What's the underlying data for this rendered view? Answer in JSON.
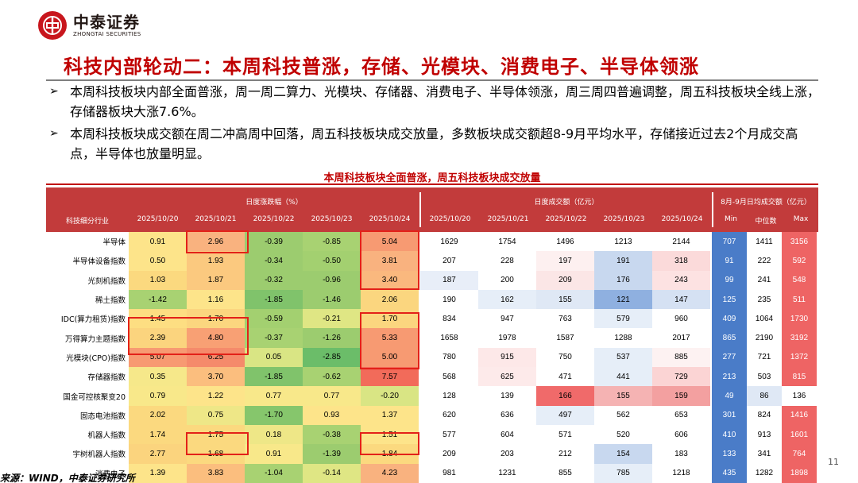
{
  "logo": {
    "cn": "中泰证券",
    "en": "ZHONGTAI SECURITIES"
  },
  "title": "科技内部轮动二：本周科技普涨，存储、光模块、消费电子、半导体领涨",
  "bullets": [
    "本周科技板块内部全面普涨，周一周二算力、光模块、存储器、消费电子、半导体领涨，周三周四普遍调整，周五科技板块全线上涨，存储器板块大涨7.6%。",
    "本周科技板块成交额在周二冲高周中回落，周五科技板块成交放量，多数板块成交额超8-9月平均水平，存储接近过去2个月成交高点，半导体也放量明显。"
  ],
  "table": {
    "title": "本周科技板块全面普涨，周五科技板块成交放量",
    "group_headers": [
      "日度涨跌幅（%）",
      "日度成交额（亿元）",
      "8月-9月日均成交额（亿元）"
    ],
    "name_header": "科技细分行业",
    "dates": [
      "2025/10/20",
      "2025/10/21",
      "2025/10/22",
      "2025/10/23",
      "2025/10/24"
    ],
    "stat_headers": [
      "Min",
      "中位数",
      "Max"
    ],
    "rows": [
      {
        "name": "半导体",
        "chg": [
          "0.91",
          "2.96",
          "-0.39",
          "-0.85",
          "5.04"
        ],
        "amt": [
          "1629",
          "1754",
          "1496",
          "1213",
          "2144"
        ],
        "stats": [
          "707",
          "1411",
          "3156"
        ]
      },
      {
        "name": "半导体设备指数",
        "chg": [
          "0.50",
          "1.93",
          "-0.34",
          "-0.50",
          "3.81"
        ],
        "amt": [
          "207",
          "228",
          "197",
          "191",
          "318"
        ],
        "stats": [
          "91",
          "222",
          "592"
        ]
      },
      {
        "name": "光刻机指数",
        "chg": [
          "1.03",
          "1.87",
          "-0.32",
          "-0.96",
          "3.40"
        ],
        "amt": [
          "187",
          "200",
          "209",
          "176",
          "243"
        ],
        "stats": [
          "99",
          "241",
          "548"
        ]
      },
      {
        "name": "稀土指数",
        "chg": [
          "-1.42",
          "1.16",
          "-1.85",
          "-1.46",
          "2.06"
        ],
        "amt": [
          "190",
          "162",
          "155",
          "121",
          "147"
        ],
        "stats": [
          "125",
          "235",
          "511"
        ]
      },
      {
        "name": "IDC(算力租赁)指数",
        "chg": [
          "1.45",
          "1.70",
          "-0.59",
          "-0.21",
          "1.70"
        ],
        "amt": [
          "834",
          "947",
          "763",
          "579",
          "960"
        ],
        "stats": [
          "409",
          "1064",
          "1730"
        ]
      },
      {
        "name": "万得算力主题指数",
        "chg": [
          "2.39",
          "4.80",
          "-0.37",
          "-1.26",
          "5.33"
        ],
        "amt": [
          "1658",
          "1978",
          "1587",
          "1288",
          "2017"
        ],
        "stats": [
          "865",
          "2190",
          "3192"
        ]
      },
      {
        "name": "光模块(CPO)指数",
        "chg": [
          "5.07",
          "6.25",
          "0.05",
          "-2.85",
          "5.00"
        ],
        "amt": [
          "780",
          "915",
          "750",
          "537",
          "885"
        ],
        "stats": [
          "277",
          "721",
          "1372"
        ]
      },
      {
        "name": "存储器指数",
        "chg": [
          "0.35",
          "3.70",
          "-1.85",
          "-0.62",
          "7.57"
        ],
        "amt": [
          "568",
          "625",
          "471",
          "441",
          "729"
        ],
        "stats": [
          "213",
          "503",
          "815"
        ]
      },
      {
        "name": "国金可控核聚变20",
        "chg": [
          "0.79",
          "1.22",
          "0.77",
          "0.77",
          "-0.20"
        ],
        "amt": [
          "128",
          "139",
          "166",
          "155",
          "159"
        ],
        "stats": [
          "49",
          "86",
          "136"
        ]
      },
      {
        "name": "固态电池指数",
        "chg": [
          "2.02",
          "0.75",
          "-1.70",
          "0.93",
          "1.37"
        ],
        "amt": [
          "620",
          "636",
          "497",
          "562",
          "653"
        ],
        "stats": [
          "301",
          "824",
          "1416"
        ]
      },
      {
        "name": "机器人指数",
        "chg": [
          "1.74",
          "1.75",
          "0.18",
          "-0.38",
          "1.51"
        ],
        "amt": [
          "577",
          "604",
          "571",
          "520",
          "606"
        ],
        "stats": [
          "410",
          "913",
          "1601"
        ]
      },
      {
        "name": "宇树机器人指数",
        "chg": [
          "2.77",
          "1.68",
          "0.91",
          "-1.39",
          "1.84"
        ],
        "amt": [
          "209",
          "203",
          "212",
          "154",
          "183"
        ],
        "stats": [
          "133",
          "341",
          "764"
        ]
      },
      {
        "name": "消费电子",
        "chg": [
          "1.39",
          "3.83",
          "-1.04",
          "-0.14",
          "4.23"
        ],
        "amt": [
          "981",
          "1231",
          "855",
          "785",
          "1218"
        ],
        "stats": [
          "435",
          "1282",
          "1898"
        ]
      }
    ],
    "chg_colors": [
      [
        "#fde48a",
        "#f9b27f",
        "#9ccc6f",
        "#a8d272",
        "#f79a72"
      ],
      [
        "#fde48a",
        "#fbc97f",
        "#9ccc6f",
        "#a3d070",
        "#f9b27f"
      ],
      [
        "#fbd97f",
        "#fbc97f",
        "#9ccc6f",
        "#9ccc6f",
        "#fab87e"
      ],
      [
        "#a8d272",
        "#fde48a",
        "#80c36b",
        "#9ccc6f",
        "#fbd67f"
      ],
      [
        "#fdde82",
        "#fbd67f",
        "#a3d070",
        "#dfe684",
        "#fbd67f"
      ],
      [
        "#fbd47e",
        "#f8a074",
        "#a8d272",
        "#9ccc6f",
        "#f79a72"
      ],
      [
        "#f79a72",
        "#f58a6b",
        "#d9e584",
        "#6bbd69",
        "#f79a72"
      ],
      [
        "#f6e88a",
        "#fbbe7e",
        "#80c36b",
        "#a8d272",
        "#f26b5a"
      ],
      [
        "#f8e88a",
        "#fde48a",
        "#f8e88a",
        "#f8e88a",
        "#d9e584"
      ],
      [
        "#fbd97f",
        "#eee787",
        "#86c66c",
        "#fde48a",
        "#fde48a"
      ],
      [
        "#fbd97f",
        "#fbd97f",
        "#eee787",
        "#a8d272",
        "#fde48a"
      ],
      [
        "#fbd47e",
        "#fbd97f",
        "#f8e88a",
        "#9ccc6f",
        "#fbd97f"
      ],
      [
        "#fde48a",
        "#fbbe7e",
        "#a8d272",
        "#dfe684",
        "#f9b27f"
      ]
    ],
    "amt_colors": [
      [
        "#ffffff",
        "#ffffff",
        "#ffffff",
        "#ffffff",
        "#ffffff"
      ],
      [
        "#ffffff",
        "#ffffff",
        "#fdf0f0",
        "#c8d8ef",
        "#fbdada"
      ],
      [
        "#e8eef8",
        "#ffffff",
        "#fbe6e6",
        "#c8d8ef",
        "#fde2e2"
      ],
      [
        "#ffffff",
        "#e6eef8",
        "#dfe8f5",
        "#8fb0e0",
        "#d5e1f3"
      ],
      [
        "#ffffff",
        "#ffffff",
        "#ffffff",
        "#e6eef8",
        "#ffffff"
      ],
      [
        "#ffffff",
        "#ffffff",
        "#ffffff",
        "#ffffff",
        "#ffffff"
      ],
      [
        "#ffffff",
        "#fde8e8",
        "#ffffff",
        "#e6eef8",
        "#fdf2f2"
      ],
      [
        "#ffffff",
        "#fdeaea",
        "#ffffff",
        "#e6eef8",
        "#fbd4d4"
      ],
      [
        "#ffffff",
        "#ffffff",
        "#f06a6a",
        "#f5b3b3",
        "#f3a0a0"
      ],
      [
        "#ffffff",
        "#ffffff",
        "#e6eef8",
        "#ffffff",
        "#ffffff"
      ],
      [
        "#ffffff",
        "#ffffff",
        "#ffffff",
        "#ffffff",
        "#ffffff"
      ],
      [
        "#ffffff",
        "#ffffff",
        "#ffffff",
        "#c8d8ef",
        "#ffffff"
      ],
      [
        "#ffffff",
        "#ffffff",
        "#ffffff",
        "#e6eef8",
        "#ffffff"
      ]
    ],
    "stat_colors": [
      "#4a7cc8",
      "#ffffff",
      "#ee6464"
    ],
    "stat_colors_last": [
      "#4a7cc8",
      "#e6eef8",
      "#ffffff"
    ]
  },
  "page_number": "11",
  "source": "来源：WIND，中泰证券研究所"
}
